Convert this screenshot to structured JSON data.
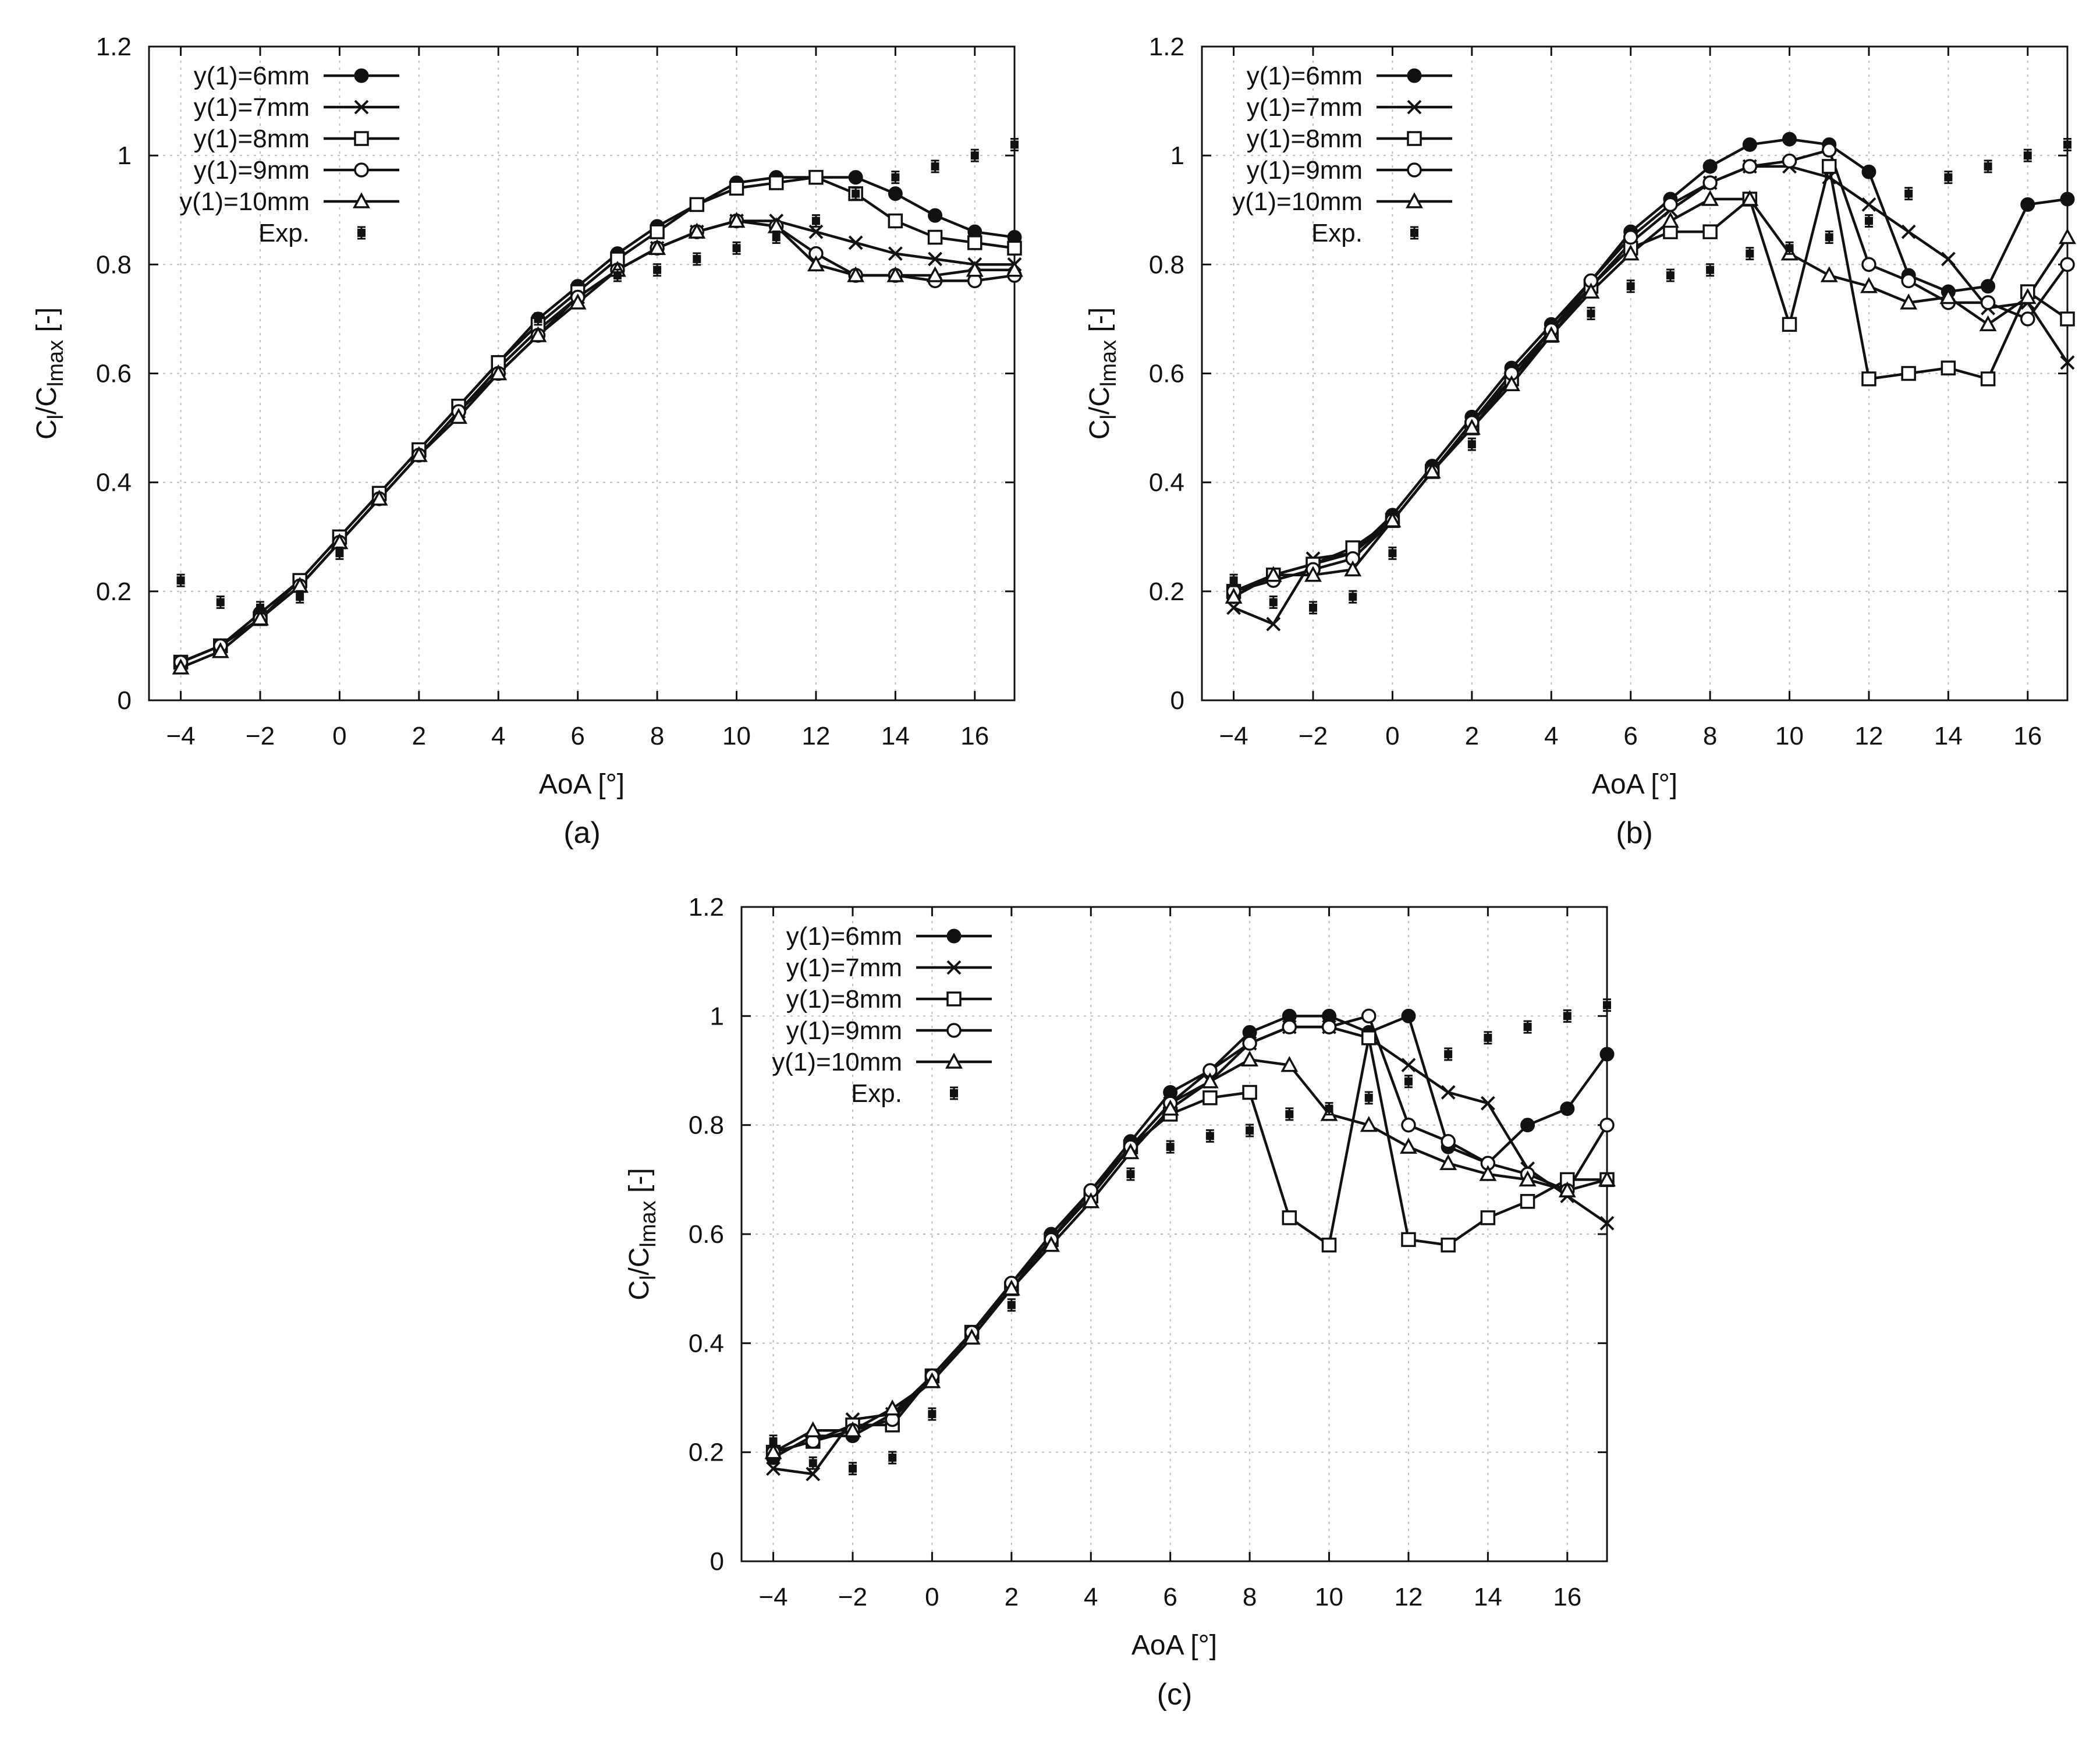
{
  "figure": {
    "panels": [
      {
        "id": "a",
        "caption": "(a)"
      },
      {
        "id": "b",
        "caption": "(b)"
      },
      {
        "id": "c",
        "caption": "(c)"
      }
    ]
  },
  "chart_data": [
    {
      "panel": "a",
      "type": "line",
      "xlabel": "AoA [°]",
      "ylabel_main": "C",
      "ylabel_sub1": "l",
      "ylabel_mid": "/C",
      "ylabel_sub2": "lmax",
      "ylabel_tail": " [-]",
      "xlim": [
        -4.8,
        17
      ],
      "ylim": [
        0,
        1.2
      ],
      "xticks": [
        "−4",
        "−2",
        "0",
        "2",
        "4",
        "6",
        "8",
        "10",
        "12",
        "14",
        "16"
      ],
      "xtick_values": [
        -4,
        -2,
        0,
        2,
        4,
        6,
        8,
        10,
        12,
        14,
        16
      ],
      "yticks": [
        "0",
        "0.2",
        "0.4",
        "0.6",
        "0.8",
        "1",
        "1.2"
      ],
      "ytick_values": [
        0,
        0.2,
        0.4,
        0.6,
        0.8,
        1,
        1.2
      ],
      "legend_position": "top-left",
      "x": [
        -4,
        -3,
        -2,
        -1,
        0,
        1,
        2,
        3,
        4,
        5,
        6,
        7,
        8,
        9,
        10,
        11,
        12,
        13,
        14,
        15,
        16,
        17
      ],
      "series": [
        {
          "name": "y(1)=6mm",
          "marker": "filled-circle",
          "values": [
            0.07,
            0.1,
            0.16,
            0.22,
            0.3,
            0.38,
            0.46,
            0.54,
            0.62,
            0.7,
            0.76,
            0.82,
            0.87,
            0.91,
            0.95,
            0.96,
            0.96,
            0.96,
            0.93,
            0.89,
            0.86,
            0.85
          ]
        },
        {
          "name": "y(1)=7mm",
          "marker": "cross",
          "values": [
            0.07,
            0.1,
            0.15,
            0.21,
            0.29,
            0.37,
            0.45,
            0.53,
            0.61,
            0.68,
            0.74,
            0.79,
            0.83,
            0.86,
            0.88,
            0.88,
            0.86,
            0.84,
            0.82,
            0.81,
            0.8,
            0.8
          ]
        },
        {
          "name": "y(1)=8mm",
          "marker": "open-square",
          "values": [
            0.07,
            0.1,
            0.15,
            0.22,
            0.3,
            0.38,
            0.46,
            0.54,
            0.62,
            0.69,
            0.75,
            0.81,
            0.86,
            0.91,
            0.94,
            0.95,
            0.96,
            0.93,
            0.88,
            0.85,
            0.84,
            0.83
          ]
        },
        {
          "name": "y(1)=9mm",
          "marker": "open-circle",
          "values": [
            0.07,
            0.1,
            0.15,
            0.21,
            0.29,
            0.37,
            0.45,
            0.53,
            0.6,
            0.67,
            0.74,
            0.79,
            0.83,
            0.86,
            0.88,
            0.87,
            0.82,
            0.78,
            0.78,
            0.77,
            0.77,
            0.78
          ]
        },
        {
          "name": "y(1)=10mm",
          "marker": "open-triangle",
          "values": [
            0.06,
            0.09,
            0.15,
            0.21,
            0.29,
            0.37,
            0.45,
            0.52,
            0.6,
            0.67,
            0.73,
            0.79,
            0.83,
            0.86,
            0.88,
            0.87,
            0.8,
            0.78,
            0.78,
            0.78,
            0.79,
            0.79
          ]
        }
      ],
      "experimental": {
        "name": "Exp.",
        "marker": "small-filled-square-with-errorbar",
        "x": [
          -4,
          -3,
          -2,
          -1,
          0,
          5,
          7,
          8,
          9,
          10,
          11,
          12,
          13,
          14,
          15,
          16,
          17
        ],
        "values": [
          0.22,
          0.18,
          0.17,
          0.19,
          0.27,
          0.7,
          0.78,
          0.79,
          0.81,
          0.83,
          0.85,
          0.88,
          0.93,
          0.96,
          0.98,
          1.0,
          1.02
        ]
      }
    },
    {
      "panel": "b",
      "type": "line",
      "xlabel": "AoA [°]",
      "ylabel_main": "C",
      "ylabel_sub1": "l",
      "ylabel_mid": "/C",
      "ylabel_sub2": "lmax",
      "ylabel_tail": " [-]",
      "xlim": [
        -4.8,
        17
      ],
      "ylim": [
        0,
        1.2
      ],
      "xticks": [
        "−4",
        "−2",
        "0",
        "2",
        "4",
        "6",
        "8",
        "10",
        "12",
        "14",
        "16"
      ],
      "xtick_values": [
        -4,
        -2,
        0,
        2,
        4,
        6,
        8,
        10,
        12,
        14,
        16
      ],
      "yticks": [
        "0",
        "0.2",
        "0.4",
        "0.6",
        "0.8",
        "1",
        "1.2"
      ],
      "ytick_values": [
        0,
        0.2,
        0.4,
        0.6,
        0.8,
        1,
        1.2
      ],
      "legend_position": "top-left",
      "x": [
        -4,
        -3,
        -2,
        -1,
        0,
        1,
        2,
        3,
        4,
        5,
        6,
        7,
        8,
        9,
        10,
        11,
        12,
        13,
        14,
        15,
        16,
        17
      ],
      "series": [
        {
          "name": "y(1)=6mm",
          "marker": "filled-circle",
          "values": [
            0.19,
            0.23,
            0.25,
            0.27,
            0.34,
            0.43,
            0.52,
            0.61,
            0.69,
            0.77,
            0.86,
            0.92,
            0.98,
            1.02,
            1.03,
            1.02,
            0.97,
            0.78,
            0.75,
            0.76,
            0.91,
            0.92
          ]
        },
        {
          "name": "y(1)=7mm",
          "marker": "cross",
          "values": [
            0.17,
            0.14,
            0.26,
            0.27,
            0.33,
            0.42,
            0.51,
            0.59,
            0.68,
            0.76,
            0.84,
            0.9,
            0.95,
            0.98,
            0.98,
            0.96,
            0.91,
            0.86,
            0.81,
            0.72,
            0.73,
            0.62
          ]
        },
        {
          "name": "y(1)=8mm",
          "marker": "open-square",
          "values": [
            0.2,
            0.23,
            0.25,
            0.28,
            0.33,
            0.42,
            0.5,
            0.59,
            0.67,
            0.76,
            0.83,
            0.86,
            0.86,
            0.92,
            0.69,
            0.98,
            0.59,
            0.6,
            0.61,
            0.59,
            0.75,
            0.7
          ]
        },
        {
          "name": "y(1)=9mm",
          "marker": "open-circle",
          "values": [
            0.2,
            0.22,
            0.24,
            0.26,
            0.33,
            0.42,
            0.51,
            0.6,
            0.68,
            0.77,
            0.85,
            0.91,
            0.95,
            0.98,
            0.99,
            1.01,
            0.8,
            0.77,
            0.73,
            0.73,
            0.7,
            0.8
          ]
        },
        {
          "name": "y(1)=10mm",
          "marker": "open-triangle",
          "values": [
            0.19,
            0.23,
            0.23,
            0.24,
            0.33,
            0.42,
            0.5,
            0.58,
            0.67,
            0.75,
            0.82,
            0.88,
            0.92,
            0.92,
            0.82,
            0.78,
            0.76,
            0.73,
            0.74,
            0.69,
            0.74,
            0.85
          ]
        }
      ],
      "experimental": {
        "name": "Exp.",
        "marker": "small-filled-square-with-errorbar",
        "x": [
          -4,
          -3,
          -2,
          -1,
          0,
          2,
          5,
          6,
          7,
          8,
          9,
          10,
          11,
          12,
          13,
          14,
          15,
          16,
          17
        ],
        "values": [
          0.22,
          0.18,
          0.17,
          0.19,
          0.27,
          0.47,
          0.71,
          0.76,
          0.78,
          0.79,
          0.82,
          0.83,
          0.85,
          0.88,
          0.93,
          0.96,
          0.98,
          1.0,
          1.02
        ]
      }
    },
    {
      "panel": "c",
      "type": "line",
      "xlabel": "AoA [°]",
      "ylabel_main": "C",
      "ylabel_sub1": "l",
      "ylabel_mid": "/C",
      "ylabel_sub2": "lmax",
      "ylabel_tail": " [-]",
      "xlim": [
        -4.8,
        17
      ],
      "ylim": [
        0,
        1.2
      ],
      "xticks": [
        "−4",
        "−2",
        "0",
        "2",
        "4",
        "6",
        "8",
        "10",
        "12",
        "14",
        "16"
      ],
      "xtick_values": [
        -4,
        -2,
        0,
        2,
        4,
        6,
        8,
        10,
        12,
        14,
        16
      ],
      "yticks": [
        "0",
        "0.2",
        "0.4",
        "0.6",
        "0.8",
        "1",
        "1.2"
      ],
      "ytick_values": [
        0,
        0.2,
        0.4,
        0.6,
        0.8,
        1,
        1.2
      ],
      "legend_position": "top-left",
      "x": [
        -4,
        -3,
        -2,
        -1,
        0,
        1,
        2,
        3,
        4,
        5,
        6,
        7,
        8,
        9,
        10,
        11,
        12,
        13,
        14,
        15,
        16,
        17
      ],
      "series": [
        {
          "name": "y(1)=6mm",
          "marker": "filled-circle",
          "values": [
            0.19,
            0.23,
            0.23,
            0.27,
            0.34,
            0.42,
            0.51,
            0.6,
            0.68,
            0.77,
            0.86,
            0.9,
            0.97,
            1.0,
            1.0,
            0.97,
            1.0,
            0.76,
            0.73,
            0.8,
            0.83,
            0.93
          ]
        },
        {
          "name": "y(1)=7mm",
          "marker": "cross",
          "values": [
            0.17,
            0.16,
            0.26,
            0.27,
            0.33,
            0.42,
            0.5,
            0.59,
            0.67,
            0.76,
            0.84,
            0.88,
            0.95,
            0.98,
            0.98,
            0.96,
            0.91,
            0.86,
            0.84,
            0.72,
            0.67,
            0.62
          ]
        },
        {
          "name": "y(1)=8mm",
          "marker": "open-square",
          "values": [
            0.2,
            0.22,
            0.25,
            0.25,
            0.34,
            0.42,
            0.5,
            0.59,
            0.67,
            0.76,
            0.82,
            0.85,
            0.86,
            0.63,
            0.58,
            0.96,
            0.59,
            0.58,
            0.63,
            0.66,
            0.7,
            0.7
          ]
        },
        {
          "name": "y(1)=9mm",
          "marker": "open-circle",
          "values": [
            0.2,
            0.22,
            0.24,
            0.26,
            0.34,
            0.42,
            0.51,
            0.59,
            0.68,
            0.76,
            0.84,
            0.9,
            0.95,
            0.98,
            0.98,
            1.0,
            0.8,
            0.77,
            0.73,
            0.71,
            0.68,
            0.8
          ]
        },
        {
          "name": "y(1)=10mm",
          "marker": "open-triangle",
          "values": [
            0.2,
            0.24,
            0.24,
            0.28,
            0.33,
            0.41,
            0.5,
            0.58,
            0.66,
            0.75,
            0.83,
            0.88,
            0.92,
            0.91,
            0.82,
            0.8,
            0.76,
            0.73,
            0.71,
            0.7,
            0.68,
            0.7
          ]
        }
      ],
      "experimental": {
        "name": "Exp.",
        "marker": "small-filled-square-with-errorbar",
        "x": [
          -4,
          -3,
          -2,
          -1,
          0,
          2,
          5,
          6,
          7,
          8,
          9,
          10,
          11,
          12,
          13,
          14,
          15,
          16,
          17
        ],
        "values": [
          0.22,
          0.18,
          0.17,
          0.19,
          0.27,
          0.47,
          0.71,
          0.76,
          0.78,
          0.79,
          0.82,
          0.83,
          0.85,
          0.88,
          0.93,
          0.96,
          0.98,
          1.0,
          1.02
        ]
      }
    }
  ]
}
